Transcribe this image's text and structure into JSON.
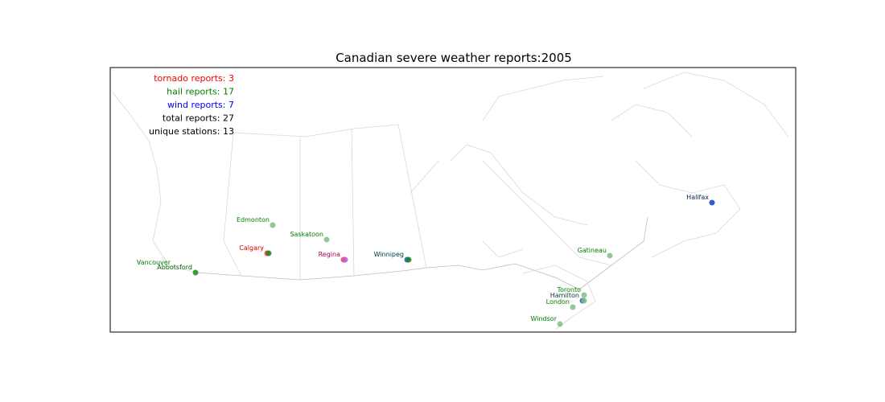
{
  "title": "Canadian severe weather reports:2005",
  "summary": [
    "tornado reports: 3",
    "hail reports: 17",
    "wind reports: 7",
    "total reports: 27",
    "unique stations: 13"
  ],
  "stations": [
    {
      "name": "Edmonton"
    },
    {
      "name": "Saskatoon"
    },
    {
      "name": "Calgary"
    },
    {
      "name": "Regina"
    },
    {
      "name": "Winnipeg"
    },
    {
      "name": "Vancouver"
    },
    {
      "name": "Abbotsford"
    },
    {
      "name": "Gatineau"
    },
    {
      "name": "Toronto"
    },
    {
      "name": "Hamilton"
    },
    {
      "name": "London"
    },
    {
      "name": "Windsor"
    },
    {
      "name": "Halifax"
    }
  ]
}
